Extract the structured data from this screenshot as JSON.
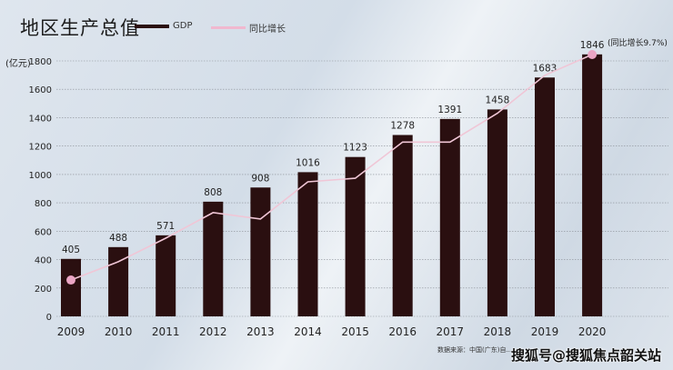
{
  "title": "地区生产总值",
  "legend": {
    "gdp": "GDP",
    "growth": "同比增长"
  },
  "unit_label": "(亿元)",
  "annotation": "(同比增长9.7%)",
  "footer": "数据来源：中国(广东)自...",
  "watermark": "搜狐号@搜狐焦点韶关站",
  "colors": {
    "bar": "#2a0f10",
    "line": "#f0c6d6",
    "marker": "#eaa5c4"
  },
  "chart_data": {
    "type": "bar",
    "title": "地区生产总值",
    "ylabel": "(亿元)",
    "xlabel": "",
    "ylim": [
      0,
      1800
    ],
    "yticks": [
      0,
      200,
      400,
      600,
      800,
      1000,
      1200,
      1400,
      1600,
      1800
    ],
    "categories": [
      "2009",
      "2010",
      "2011",
      "2012",
      "2013",
      "2014",
      "2015",
      "2016",
      "2017",
      "2018",
      "2019",
      "2020"
    ],
    "series": [
      {
        "name": "GDP",
        "type": "bar",
        "values": [
          405,
          488,
          571,
          808,
          908,
          1016,
          1123,
          1278,
          1391,
          1458,
          1683,
          1846
        ]
      },
      {
        "name": "同比增长",
        "type": "line",
        "values_in_plot_units": [
          256,
          385,
          551,
          731,
          686,
          948,
          973,
          1228,
          1228,
          1431,
          1698,
          1845
        ]
      }
    ],
    "grid": true,
    "legend_position": "top-left"
  }
}
